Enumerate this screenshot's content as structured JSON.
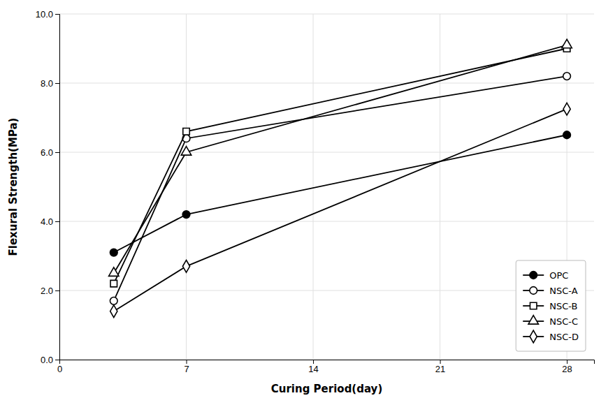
{
  "chart_data": {
    "type": "line",
    "xlabel": "Curing Period(day)",
    "ylabel": "Flexural Strength(MPa)",
    "x": [
      3,
      7,
      28
    ],
    "series": [
      {
        "name": "OPC",
        "color": "black",
        "marker": "filled-circle",
        "values": [
          3.1,
          4.2,
          6.5
        ]
      },
      {
        "name": "NSC-A",
        "color": "black",
        "marker": "open-circle",
        "values": [
          1.7,
          6.4,
          8.2
        ]
      },
      {
        "name": "NSC-B",
        "color": "black",
        "marker": "open-square",
        "values": [
          2.2,
          6.6,
          9.0
        ]
      },
      {
        "name": "NSC-C",
        "color": "black",
        "marker": "open-triangle",
        "values": [
          2.5,
          6.0,
          9.1
        ]
      },
      {
        "name": "NSC-D",
        "color": "black",
        "marker": "open-diamond",
        "values": [
          1.4,
          2.7,
          7.25
        ]
      }
    ],
    "xlim": [
      0,
      29.5
    ],
    "ylim": [
      0.0,
      10.0
    ],
    "xticks": [
      0,
      7,
      14,
      21,
      28
    ],
    "yticks": [
      {
        "value": 0.0,
        "label": "0.0"
      },
      {
        "value": 2.0,
        "label": "2.0"
      },
      {
        "value": 4.0,
        "label": "4.0"
      },
      {
        "value": 6.0,
        "label": "6.0"
      },
      {
        "value": 8.0,
        "label": "8.0"
      },
      {
        "value": 10.0,
        "label": "10.0"
      }
    ],
    "grid": true,
    "legend": "lower right"
  }
}
